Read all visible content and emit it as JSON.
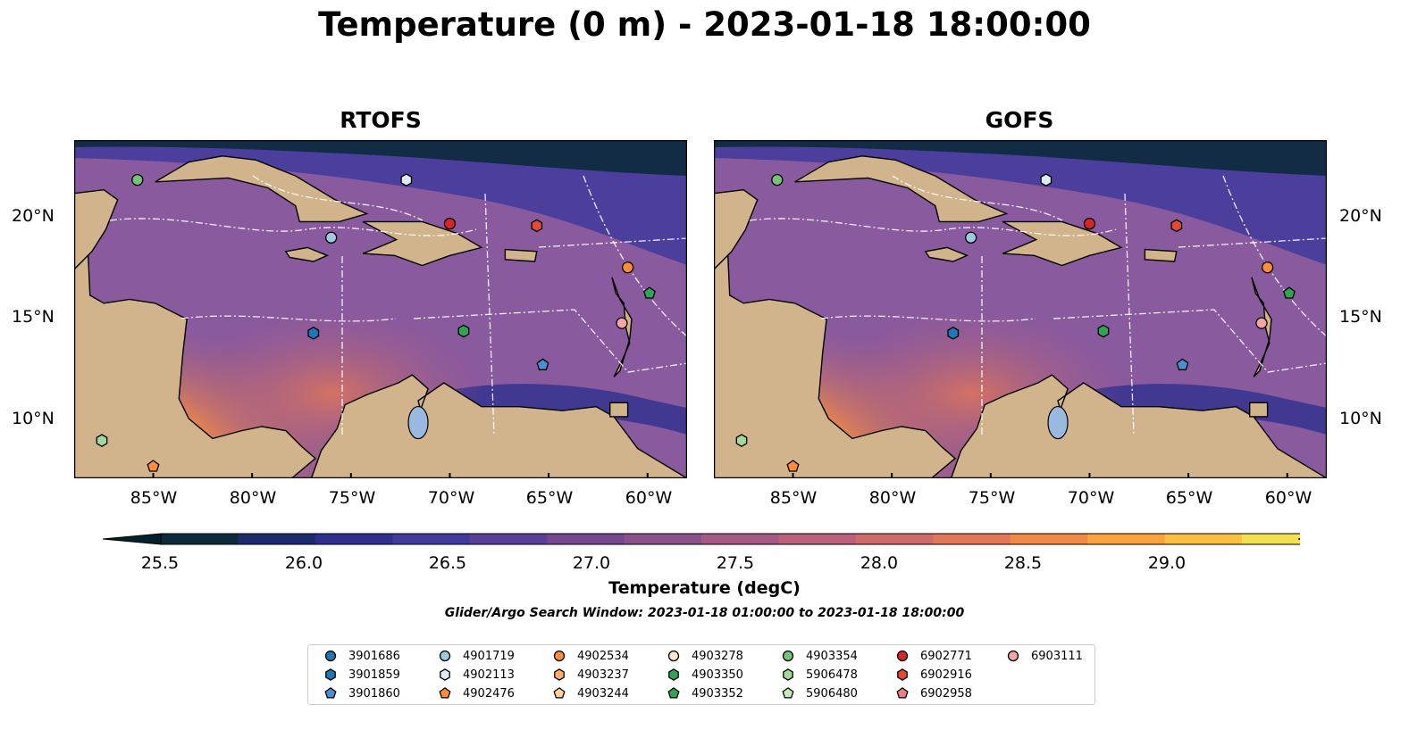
{
  "title": "Temperature (0 m) - 2023-01-18 18:00:00",
  "panels": [
    {
      "title": "RTOFS",
      "model": "rtofs"
    },
    {
      "title": "GOFS",
      "model": "gofs"
    }
  ],
  "map": {
    "lon_range": [
      -89,
      -58
    ],
    "lat_range": [
      7,
      24
    ],
    "x_ticks": [
      {
        "lon": -85,
        "label": "85°W"
      },
      {
        "lon": -80,
        "label": "80°W"
      },
      {
        "lon": -75,
        "label": "75°W"
      },
      {
        "lon": -70,
        "label": "70°W"
      },
      {
        "lon": -65,
        "label": "65°W"
      },
      {
        "lon": -60,
        "label": "60°W"
      }
    ],
    "y_ticks": [
      {
        "lat": 20,
        "label": "20°N"
      },
      {
        "lat": 15,
        "label": "15°N"
      },
      {
        "lat": 10,
        "label": "10°N"
      }
    ],
    "land_color": "#d2b48c",
    "ocean_base_color": "#8a5a9e"
  },
  "colorbar": {
    "label": "Temperature (degC)",
    "min": 25.5,
    "max": 29.25,
    "step": 0.25,
    "ticks": [
      "25.5",
      "26.0",
      "26.5",
      "27.0",
      "27.5",
      "28.0",
      "28.5",
      "29.0"
    ],
    "colors": [
      "#0c2a3c",
      "#1c2a6e",
      "#2e2f8f",
      "#3f3a9c",
      "#5b3e98",
      "#74478f",
      "#8c508a",
      "#a35a84",
      "#ba607a",
      "#ce6a6a",
      "#e17658",
      "#f08a45",
      "#fba23c",
      "#fcc13f",
      "#f3e14f"
    ],
    "under_color": "#04202c",
    "over_color": "#e8f55a"
  },
  "search_window": "Glider/Argo Search Window: 2023-01-18 01:00:00 to 2023-01-18 18:00:00",
  "legend": [
    {
      "id": "3901686",
      "color": "#1f77b4",
      "marker": "circle"
    },
    {
      "id": "3901859",
      "color": "#1f77b4",
      "marker": "hexagon"
    },
    {
      "id": "3901860",
      "color": "#4a90d0",
      "marker": "pentagon"
    },
    {
      "id": "4901719",
      "color": "#9ecae1",
      "marker": "circle"
    },
    {
      "id": "4902113",
      "color": "#deebf7",
      "marker": "hexagon"
    },
    {
      "id": "4902476",
      "color": "#fd8d3c",
      "marker": "pentagon"
    },
    {
      "id": "4902534",
      "color": "#fd8d3c",
      "marker": "circle"
    },
    {
      "id": "4903237",
      "color": "#fdae6b",
      "marker": "hexagon"
    },
    {
      "id": "4903244",
      "color": "#fdd0a2",
      "marker": "pentagon"
    },
    {
      "id": "4903278",
      "color": "#fee6ce",
      "marker": "circle"
    },
    {
      "id": "4903350",
      "color": "#31a354",
      "marker": "hexagon"
    },
    {
      "id": "4903352",
      "color": "#31a354",
      "marker": "pentagon"
    },
    {
      "id": "4903354",
      "color": "#74c476",
      "marker": "circle"
    },
    {
      "id": "5906478",
      "color": "#a1d99b",
      "marker": "hexagon"
    },
    {
      "id": "5906480",
      "color": "#c7e9c0",
      "marker": "pentagon"
    },
    {
      "id": "6902771",
      "color": "#d62728",
      "marker": "circle"
    },
    {
      "id": "6902916",
      "color": "#e34a33",
      "marker": "hexagon"
    },
    {
      "id": "6902958",
      "color": "#f08080",
      "marker": "pentagon"
    },
    {
      "id": "6903111",
      "color": "#f4a6a6",
      "marker": "circle"
    }
  ],
  "floats": [
    {
      "id": "4903354",
      "lon": -85.8,
      "lat": 22.0
    },
    {
      "id": "4902113",
      "lon": -72.2,
      "lat": 22.0
    },
    {
      "id": "4901719",
      "lon": -76.0,
      "lat": 19.1
    },
    {
      "id": "6902771",
      "lon": -70.0,
      "lat": 19.8
    },
    {
      "id": "6902916",
      "lon": -65.6,
      "lat": 19.7
    },
    {
      "id": "4902534",
      "lon": -61.0,
      "lat": 17.6
    },
    {
      "id": "4903352",
      "lon": -59.9,
      "lat": 16.3
    },
    {
      "id": "6903111",
      "lon": -61.3,
      "lat": 14.8
    },
    {
      "id": "3901859",
      "lon": -76.9,
      "lat": 14.3
    },
    {
      "id": "4903350",
      "lon": -69.3,
      "lat": 14.4
    },
    {
      "id": "3901860",
      "lon": -65.3,
      "lat": 12.7
    },
    {
      "id": "5906478",
      "lon": -87.6,
      "lat": 8.9
    },
    {
      "id": "4902476",
      "lon": -85.0,
      "lat": 7.6
    }
  ]
}
